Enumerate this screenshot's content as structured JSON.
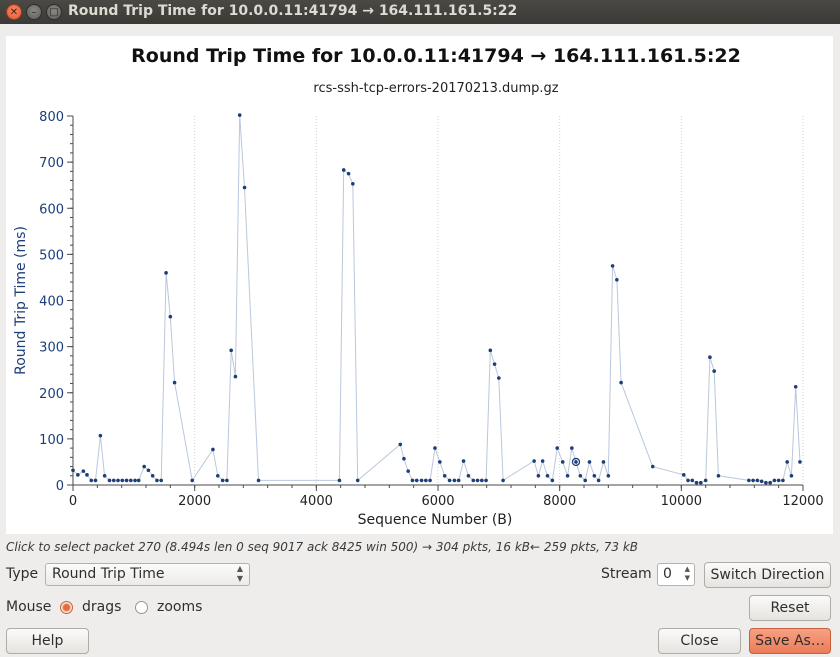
{
  "window": {
    "title": "Round Trip Time for 10.0.0.11:41794 → 164.111.161.5:22",
    "close_glyph": "✕",
    "minimize_glyph": "–",
    "maximize_glyph": "□"
  },
  "chart_data": {
    "type": "scatter",
    "title": "Round Trip Time for 10.0.0.11:41794 → 164.111.161.5:22",
    "subtitle": "rcs-ssh-tcp-errors-20170213.dump.gz",
    "xlabel": "Sequence Number (B)",
    "ylabel": "Round Trip Time (ms)",
    "xlim": [
      0,
      12000
    ],
    "ylim": [
      0,
      800
    ],
    "xticks": [
      0,
      2000,
      4000,
      6000,
      8000,
      10000,
      12000
    ],
    "yticks": [
      0,
      100,
      200,
      300,
      400,
      500,
      600,
      700,
      800
    ],
    "grid": "vertical",
    "series_color": "#1c3f78",
    "line_color": "#b9c8dd",
    "selected_point": {
      "x": 8268,
      "y": 50
    },
    "points": [
      {
        "x": 0,
        "y": 32
      },
      {
        "x": 80,
        "y": 22
      },
      {
        "x": 170,
        "y": 30
      },
      {
        "x": 230,
        "y": 22
      },
      {
        "x": 300,
        "y": 10
      },
      {
        "x": 370,
        "y": 10
      },
      {
        "x": 450,
        "y": 107
      },
      {
        "x": 520,
        "y": 20
      },
      {
        "x": 600,
        "y": 10
      },
      {
        "x": 670,
        "y": 10
      },
      {
        "x": 740,
        "y": 10
      },
      {
        "x": 810,
        "y": 10
      },
      {
        "x": 880,
        "y": 10
      },
      {
        "x": 950,
        "y": 10
      },
      {
        "x": 1020,
        "y": 10
      },
      {
        "x": 1080,
        "y": 10
      },
      {
        "x": 1170,
        "y": 40
      },
      {
        "x": 1240,
        "y": 32
      },
      {
        "x": 1310,
        "y": 20
      },
      {
        "x": 1380,
        "y": 10
      },
      {
        "x": 1450,
        "y": 10
      },
      {
        "x": 1530,
        "y": 460
      },
      {
        "x": 1600,
        "y": 365
      },
      {
        "x": 1670,
        "y": 222
      },
      {
        "x": 1960,
        "y": 10
      },
      {
        "x": 2300,
        "y": 77
      },
      {
        "x": 2380,
        "y": 20
      },
      {
        "x": 2460,
        "y": 10
      },
      {
        "x": 2530,
        "y": 10
      },
      {
        "x": 2600,
        "y": 292
      },
      {
        "x": 2670,
        "y": 235
      },
      {
        "x": 2740,
        "y": 802
      },
      {
        "x": 2820,
        "y": 645
      },
      {
        "x": 3050,
        "y": 10
      },
      {
        "x": 4380,
        "y": 10
      },
      {
        "x": 4450,
        "y": 683
      },
      {
        "x": 4530,
        "y": 675
      },
      {
        "x": 4600,
        "y": 653
      },
      {
        "x": 4680,
        "y": 10
      },
      {
        "x": 5380,
        "y": 88
      },
      {
        "x": 5440,
        "y": 57
      },
      {
        "x": 5510,
        "y": 30
      },
      {
        "x": 5580,
        "y": 10
      },
      {
        "x": 5650,
        "y": 10
      },
      {
        "x": 5730,
        "y": 10
      },
      {
        "x": 5800,
        "y": 10
      },
      {
        "x": 5870,
        "y": 10
      },
      {
        "x": 5950,
        "y": 80
      },
      {
        "x": 6030,
        "y": 50
      },
      {
        "x": 6110,
        "y": 20
      },
      {
        "x": 6190,
        "y": 10
      },
      {
        "x": 6270,
        "y": 10
      },
      {
        "x": 6340,
        "y": 10
      },
      {
        "x": 6420,
        "y": 52
      },
      {
        "x": 6500,
        "y": 20
      },
      {
        "x": 6580,
        "y": 10
      },
      {
        "x": 6650,
        "y": 10
      },
      {
        "x": 6720,
        "y": 10
      },
      {
        "x": 6790,
        "y": 10
      },
      {
        "x": 6860,
        "y": 292
      },
      {
        "x": 6930,
        "y": 262
      },
      {
        "x": 7000,
        "y": 232
      },
      {
        "x": 7070,
        "y": 10
      },
      {
        "x": 7580,
        "y": 52
      },
      {
        "x": 7650,
        "y": 20
      },
      {
        "x": 7720,
        "y": 52
      },
      {
        "x": 7800,
        "y": 20
      },
      {
        "x": 7880,
        "y": 10
      },
      {
        "x": 7960,
        "y": 80
      },
      {
        "x": 8050,
        "y": 50
      },
      {
        "x": 8130,
        "y": 20
      },
      {
        "x": 8200,
        "y": 80
      },
      {
        "x": 8268,
        "y": 50
      },
      {
        "x": 8340,
        "y": 20
      },
      {
        "x": 8420,
        "y": 10
      },
      {
        "x": 8490,
        "y": 50
      },
      {
        "x": 8570,
        "y": 20
      },
      {
        "x": 8640,
        "y": 10
      },
      {
        "x": 8720,
        "y": 50
      },
      {
        "x": 8800,
        "y": 20
      },
      {
        "x": 8870,
        "y": 475
      },
      {
        "x": 8940,
        "y": 445
      },
      {
        "x": 9010,
        "y": 222
      },
      {
        "x": 9530,
        "y": 40
      },
      {
        "x": 10040,
        "y": 22
      },
      {
        "x": 10110,
        "y": 10
      },
      {
        "x": 10180,
        "y": 10
      },
      {
        "x": 10250,
        "y": 5
      },
      {
        "x": 10320,
        "y": 5
      },
      {
        "x": 10400,
        "y": 10
      },
      {
        "x": 10470,
        "y": 277
      },
      {
        "x": 10540,
        "y": 247
      },
      {
        "x": 10610,
        "y": 20
      },
      {
        "x": 11110,
        "y": 10
      },
      {
        "x": 11180,
        "y": 10
      },
      {
        "x": 11250,
        "y": 10
      },
      {
        "x": 11320,
        "y": 8
      },
      {
        "x": 11390,
        "y": 5
      },
      {
        "x": 11460,
        "y": 5
      },
      {
        "x": 11530,
        "y": 10
      },
      {
        "x": 11600,
        "y": 10
      },
      {
        "x": 11670,
        "y": 10
      },
      {
        "x": 11740,
        "y": 50
      },
      {
        "x": 11810,
        "y": 20
      },
      {
        "x": 11880,
        "y": 213
      },
      {
        "x": 11950,
        "y": 50
      }
    ]
  },
  "status_text": "Click to select packet 270 (8.494s len 0 seq 9017 ack 8425 win 500) → 304 pkts, 16 kB← 259 pkts, 73 kB",
  "controls": {
    "type_label": "Type",
    "type_value": "Round Trip Time",
    "stream_label": "Stream",
    "stream_value": "0",
    "switch_direction": "Switch Direction",
    "mouse_label": "Mouse",
    "drags_label": "drags",
    "zooms_label": "zooms",
    "mouse_mode": "drags",
    "reset": "Reset",
    "help": "Help",
    "close": "Close",
    "save_as": "Save As…"
  }
}
